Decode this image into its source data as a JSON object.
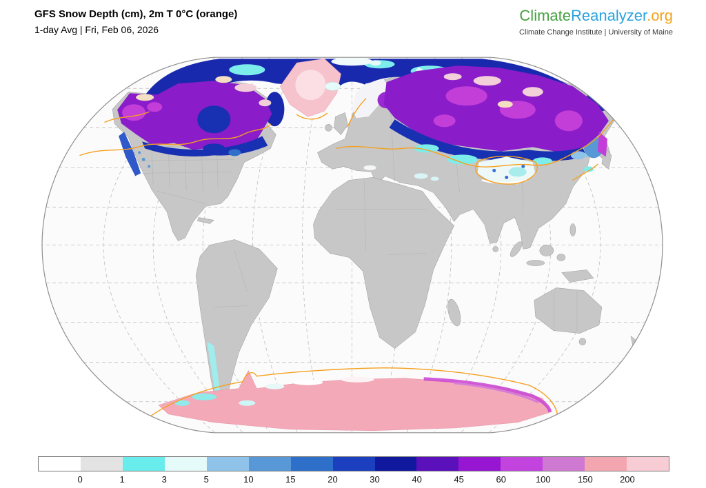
{
  "header": {
    "title": "GFS Snow Depth (cm), 2m T 0°C (orange)",
    "subtitle": "1-day Avg | Fri, Feb 06, 2026"
  },
  "branding": {
    "logo_climate": "Climate",
    "logo_reanalyzer": "Reanalyzer",
    "logo_org": ".org",
    "tagline": "Climate Change Institute | University of Maine"
  },
  "map": {
    "variable": "snow depth (cm)",
    "contour_label": "2m T 0°C",
    "model": "GFS",
    "average": "1-day Avg",
    "date": "Fri, Feb 06, 2026"
  },
  "theme": {
    "logo_green": "#45a041",
    "logo_blue": "#29a3dc",
    "logo_orange": "#f2a31b",
    "contour_orange": "#f5a01e",
    "land_gray": "#c7c7c7",
    "ocean_white": "#fbfbfb",
    "grid_gray": "#bdbdbd",
    "tagline_gray": "#3c3c3c"
  },
  "colorbar": {
    "ticks": [
      "0",
      "1",
      "3",
      "5",
      "10",
      "15",
      "20",
      "30",
      "40",
      "45",
      "60",
      "100",
      "150",
      "200"
    ],
    "colors": [
      "#ffffff",
      "#e3e3e3",
      "#69edec",
      "#e5fbfa",
      "#8fc3e9",
      "#5898d6",
      "#2d6fc9",
      "#1b3fbe",
      "#10189e",
      "#5a10bb",
      "#9616d2",
      "#c243de",
      "#cf79d3",
      "#f4a6b0",
      "#f8ccd4"
    ]
  }
}
